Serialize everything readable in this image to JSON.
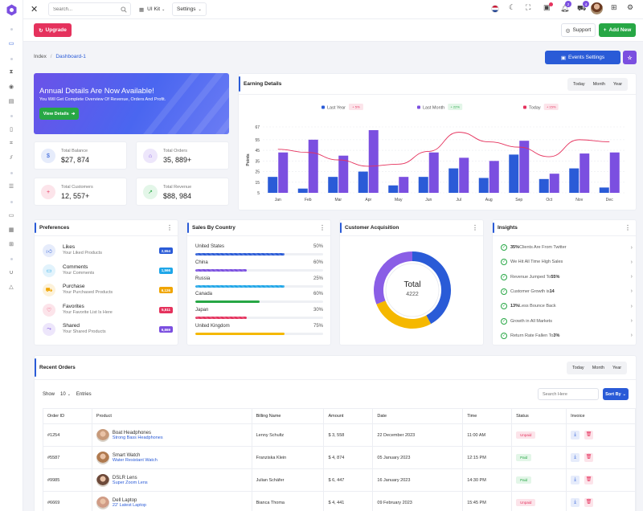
{
  "colors": {
    "primary": "#2a5bd7",
    "danger": "#e5325d",
    "success": "#27a745",
    "purple": "#7b4fe0"
  },
  "topbar": {
    "search_placeholder": "Search...",
    "ui_kit": "UI Kit",
    "settings": "Settings",
    "notif_badge": "2",
    "cart_badge": "4"
  },
  "subbar": {
    "upgrade": "Upgrade",
    "support": "Support",
    "add_new": "Add New"
  },
  "breadcrumb": {
    "index": "Index",
    "current": "Dashboard-1"
  },
  "events_settings": "Events Settings",
  "banner": {
    "title": "Annual Details Are Now Available!",
    "subtitle": "You Will Get Complete Overview Of Revenue, Orders And Profit.",
    "button": "View Details"
  },
  "stats": [
    {
      "label": "Total Balance",
      "value": "$27, 874",
      "icon": "dollar-icon"
    },
    {
      "label": "Total Orders",
      "value": "35, 889+",
      "icon": "bag-icon"
    },
    {
      "label": "Total Customers",
      "value": "12, 557+",
      "icon": "user-plus-icon"
    },
    {
      "label": "Total Revenue",
      "value": "$88, 984",
      "icon": "trend-icon"
    }
  ],
  "earning": {
    "title": "Earning Details",
    "ranges": [
      "Today",
      "Month",
      "Year"
    ]
  },
  "chart_data": {
    "type": "bar",
    "title": "Earning Details",
    "categories": [
      "Jan",
      "Feb",
      "Mar",
      "Apr",
      "May",
      "Jun",
      "Jul",
      "Aug",
      "Sep",
      "Oct",
      "Nov",
      "Dec"
    ],
    "ylabel": "Points",
    "yticks": [
      "5",
      "15",
      "25",
      "35",
      "45",
      "55",
      "67"
    ],
    "ylim": [
      5,
      67
    ],
    "legend": [
      {
        "name": "Last Year",
        "change": "+ 5%",
        "color": "#2a5bd7"
      },
      {
        "name": "Last Month",
        "change": "+ 22%",
        "color": "#7b4fe0"
      },
      {
        "name": "Today",
        "change": "+ 15%",
        "color": "#e5325d"
      }
    ],
    "series": [
      {
        "name": "Last Year",
        "values": [
          20,
          9,
          20,
          25,
          12,
          20,
          28,
          19,
          41,
          18,
          28,
          10
        ]
      },
      {
        "name": "Last Month",
        "values": [
          43,
          55,
          40,
          64,
          20,
          43,
          38,
          35,
          54,
          23,
          42,
          43
        ]
      },
      {
        "name": "Today",
        "values": [
          46,
          43,
          36,
          30,
          32,
          44,
          62,
          53,
          48,
          39,
          55,
          53
        ]
      }
    ]
  },
  "preferences": {
    "title": "Preferences",
    "items": [
      {
        "title": "Likes",
        "sub": "Your Liked Products",
        "badge": "2,554",
        "color": "#2a5bd7",
        "bg": "#e6ecfb",
        "icon": "thumbs-up-icon"
      },
      {
        "title": "Comments",
        "sub": "Your Comments",
        "badge": "1,566",
        "color": "#1fa6e8",
        "bg": "#e2f3fc",
        "icon": "comment-icon"
      },
      {
        "title": "Purchase",
        "sub": "Your Purchased Products",
        "badge": "6,126",
        "color": "#f0a500",
        "bg": "#fdf2da",
        "icon": "cart-icon"
      },
      {
        "title": "Favorites",
        "sub": "Your Favorite List Is Here",
        "badge": "5,511",
        "color": "#e5325d",
        "bg": "#fce4ea",
        "icon": "heart-icon"
      },
      {
        "title": "Shared",
        "sub": "Your Shared Products",
        "badge": "6,869",
        "color": "#7b4fe0",
        "bg": "#ede6fb",
        "icon": "share-icon"
      }
    ]
  },
  "sales": {
    "title": "Sales By Country",
    "items": [
      {
        "name": "United States",
        "pct": "50%",
        "value": 0.7,
        "color": "#2a5bd7",
        "striped": true
      },
      {
        "name": "China",
        "pct": "60%",
        "value": 0.4,
        "color": "#7b4fe0",
        "striped": true
      },
      {
        "name": "Russia",
        "pct": "25%",
        "value": 0.7,
        "color": "#1fa6e8",
        "striped": true
      },
      {
        "name": "Canada",
        "pct": "60%",
        "value": 0.5,
        "color": "#27a745",
        "striped": false
      },
      {
        "name": "Japan",
        "pct": "30%",
        "value": 0.4,
        "color": "#e5325d",
        "striped": true
      },
      {
        "name": "United Kingdom",
        "pct": "75%",
        "value": 0.7,
        "color": "#f5b800",
        "striped": false
      }
    ]
  },
  "acquisition": {
    "title": "Customer Acquisition",
    "total_label": "Total",
    "total_value": "4222",
    "segments": [
      {
        "value": 0.42,
        "color": "#2a5bd7"
      },
      {
        "value": 0.27,
        "color": "#f5b800"
      },
      {
        "value": 0.31,
        "color": "#8a5ee6"
      }
    ]
  },
  "insights": {
    "title": "Insights",
    "items": [
      {
        "bold": "35%",
        "text": " Clients Are From Twitter"
      },
      {
        "bold": "",
        "text": "We Hit All Time High Sales"
      },
      {
        "bold": "",
        "text": "Revenue Jumped To ",
        "bold_end": "55%"
      },
      {
        "bold": "",
        "text": "Customer Growth is ",
        "bold_end": "14"
      },
      {
        "bold": "13%",
        "text": " Less Bounce Back"
      },
      {
        "bold": "",
        "text": "Growth in All Markets"
      },
      {
        "bold": "",
        "text": "Return Rate Fallen To ",
        "bold_end": "3%"
      }
    ]
  },
  "orders": {
    "title": "Recent Orders",
    "ranges": [
      "Today",
      "Month",
      "Year"
    ],
    "show": "Show",
    "entries_count": "10",
    "entries": "Entries",
    "search_placeholder": "Search Here",
    "sort": "Sort By",
    "headers": [
      "Order ID",
      "Product",
      "Billing Name",
      "Amount",
      "Date",
      "Time",
      "Status",
      "Invoice"
    ],
    "rows": [
      {
        "id": "#1254",
        "product": "Boat Headphones",
        "desc": "Strong Bass Headphones",
        "name": "Lenny Schultz",
        "amount": "$ 3, 558",
        "date": "22 December 2023",
        "time": "11:00 AM",
        "status": "Unpaid",
        "avatar": "#c79a7a"
      },
      {
        "id": "#5587",
        "product": "Smart Watch",
        "desc": "Water Resistant Watch",
        "name": "Franziska Klein",
        "amount": "$ 4, 874",
        "date": "05 January 2023",
        "time": "12:15 PM",
        "status": "Paid",
        "avatar": "#b07a4f"
      },
      {
        "id": "#9985",
        "product": "DSLR Lens",
        "desc": "Super Zoom Lens",
        "name": "Julian Schäfer",
        "amount": "$ 6, 447",
        "date": "16 January 2023",
        "time": "14:30 PM",
        "status": "Paid",
        "avatar": "#6d4a3a"
      },
      {
        "id": "#6669",
        "product": "Dell Laptop",
        "desc": "22' Latest Laptop",
        "name": "Bianca Thoma",
        "amount": "$ 4, 441",
        "date": "09 February 2023",
        "time": "15:45 PM",
        "status": "Unpaid",
        "avatar": "#d09c86"
      }
    ]
  }
}
